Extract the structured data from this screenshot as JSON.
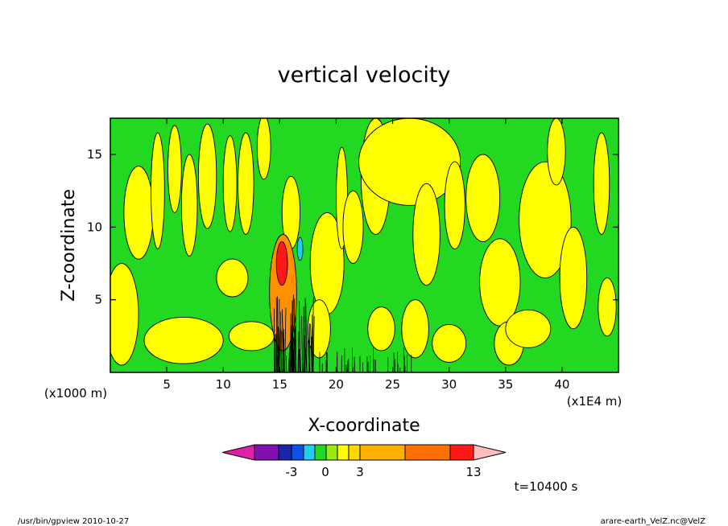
{
  "chart_data": {
    "type": "heatmap",
    "title": "vertical velocity",
    "xlabel": "X-coordinate",
    "ylabel": "Z-coordinate",
    "x_unit_left": "(x1000 m)",
    "x_unit_right": "(x1E4 m)",
    "xlim": [
      0,
      45
    ],
    "ylim": [
      0,
      17.5
    ],
    "x_ticks": [
      5,
      10,
      15,
      20,
      25,
      30,
      35,
      40
    ],
    "y_ticks": [
      5,
      10,
      15
    ],
    "time_label": "t=10400 s",
    "colorbar": {
      "levels_colors": [
        "#e020a8",
        "#8010b0",
        "#1828a8",
        "#0b52e8",
        "#22cdf0",
        "#22d820",
        "#98ea10",
        "#ffff00",
        "#ffd800",
        "#ffb000",
        "#ff7000",
        "#ff1818",
        "#ff7a7a",
        "#ffbcbc"
      ],
      "tick_labels": [
        {
          "label": "-3",
          "value": -3
        },
        {
          "label": "0",
          "value": 0
        },
        {
          "label": "3",
          "value": 3
        },
        {
          "label": "13",
          "value": 13
        }
      ]
    },
    "regions": [
      {
        "name": "background",
        "color": "#22d820"
      },
      {
        "name": "updraft",
        "color": "#ffff00"
      },
      {
        "name": "strong-updraft",
        "color": "#ff9000"
      },
      {
        "name": "downdraft",
        "color": "#22cdf0"
      }
    ]
  },
  "footer": {
    "left": "/usr/bin/gpview  2010-10-27",
    "right": "arare-earth_VelZ.nc@VelZ"
  }
}
